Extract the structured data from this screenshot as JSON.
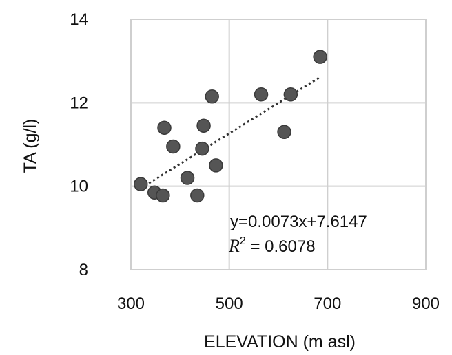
{
  "chart_data": {
    "type": "scatter",
    "title": "",
    "xlabel": "ELEVATION (m asl)",
    "ylabel": "TA (g/l)",
    "xlim": [
      300,
      900
    ],
    "ylim": [
      8,
      14
    ],
    "xticks": [
      300,
      500,
      700,
      900
    ],
    "yticks": [
      8,
      10,
      12,
      14
    ],
    "grid": true,
    "marker_color": "#555555",
    "series": [
      {
        "points": [
          {
            "x": 320,
            "y": 10.05
          },
          {
            "x": 348,
            "y": 9.85
          },
          {
            "x": 365,
            "y": 9.78
          },
          {
            "x": 368,
            "y": 11.4
          },
          {
            "x": 386,
            "y": 10.95
          },
          {
            "x": 415,
            "y": 10.2
          },
          {
            "x": 435,
            "y": 9.78
          },
          {
            "x": 445,
            "y": 10.9
          },
          {
            "x": 448,
            "y": 11.45
          },
          {
            "x": 465,
            "y": 12.15
          },
          {
            "x": 473,
            "y": 10.5
          },
          {
            "x": 565,
            "y": 12.2
          },
          {
            "x": 612,
            "y": 11.3
          },
          {
            "x": 625,
            "y": 12.2
          },
          {
            "x": 685,
            "y": 13.1
          }
        ]
      }
    ],
    "trendline": {
      "type": "linear",
      "slope": 0.0073,
      "intercept": 7.6147,
      "x_range": [
        320,
        685
      ],
      "equation": "y=0.0073x+7.6147",
      "r2_label": "R",
      "r2_sup": "2",
      "r2_value": " = 0.6078"
    }
  }
}
